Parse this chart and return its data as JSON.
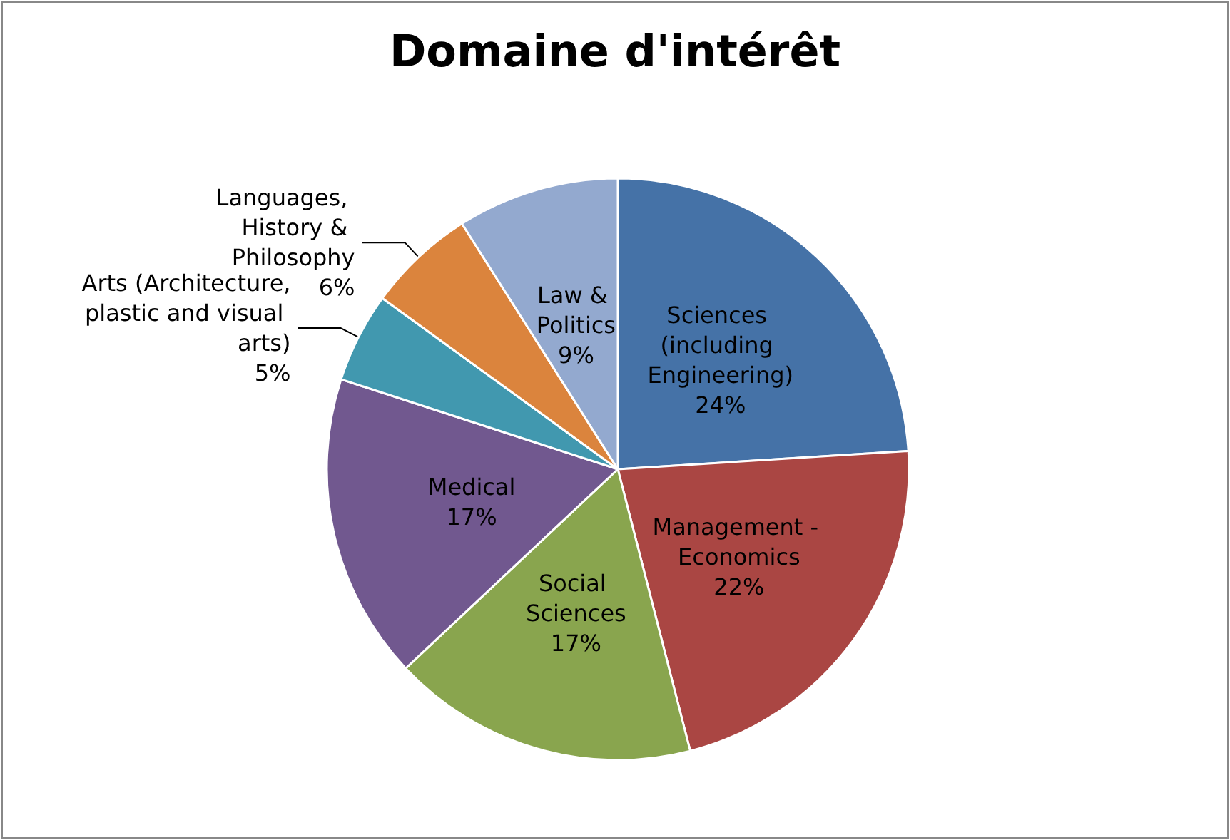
{
  "chart_data": {
    "type": "pie",
    "title": "Domaine d'intérêt",
    "categories": [
      "Sciences (including Engineering)",
      "Management - Economics",
      "Social Sciences",
      "Medical",
      "Arts (Architecture, plastic and visual arts)",
      "Languages, History & Philosophy",
      "Law & Politics"
    ],
    "values": [
      24,
      22,
      17,
      17,
      5,
      6,
      9
    ],
    "value_labels": [
      "24%",
      "22%",
      "17%",
      "17%",
      "5%",
      "6%",
      "9%"
    ],
    "colors": [
      "#4572a7",
      "#aa4643",
      "#89a54e",
      "#71588f",
      "#4198af",
      "#db843d",
      "#93a9cf"
    ],
    "legend": false
  }
}
